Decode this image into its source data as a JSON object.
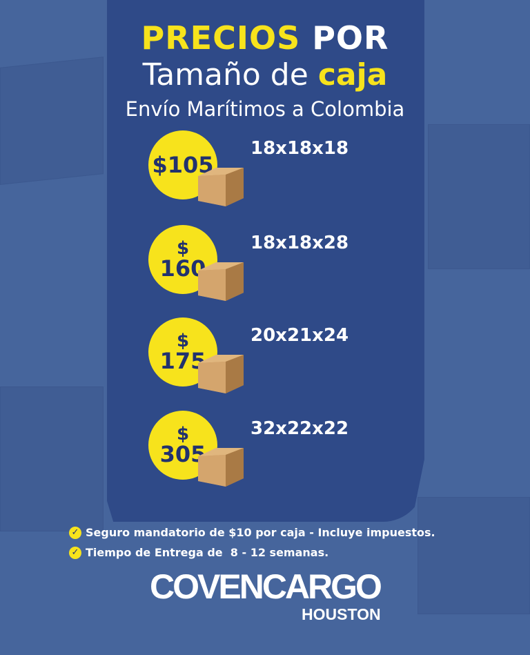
{
  "title": {
    "line1_yellow": "PRECIOS",
    "line1_white": "POR",
    "line2_white": "Tamaño de",
    "line2_yellow": "caja",
    "subtitle": "Envío Marítimos a Colombia"
  },
  "prices": [
    {
      "price": "$105",
      "size": "18x18x18"
    },
    {
      "dollar": "$",
      "amount": "160",
      "size": "18x18x28"
    },
    {
      "dollar": "$",
      "amount": "175",
      "size": "20x21x24"
    },
    {
      "dollar": "$",
      "amount": "305",
      "size": "32x22x22"
    }
  ],
  "notes": [
    "Seguro mandatorio de $10 por caja - Incluye impuestos.",
    "Tiempo de Entrega de  8 - 12 semanas."
  ],
  "brand": {
    "name": "COVENCARGO",
    "location": "HOUSTON"
  },
  "colors": {
    "accent": "#f7e31c",
    "panel": "#2f4a88",
    "background": "#46659c"
  }
}
